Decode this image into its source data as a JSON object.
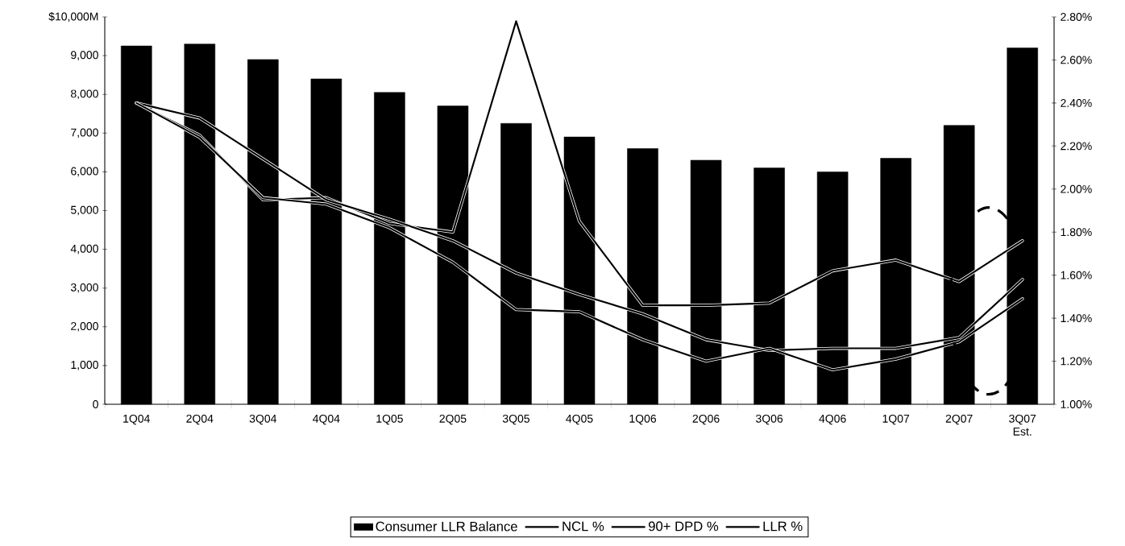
{
  "chart_data": {
    "type": "bar",
    "categories": [
      "1Q04",
      "2Q04",
      "3Q04",
      "4Q04",
      "1Q05",
      "2Q05",
      "3Q05",
      "4Q05",
      "1Q06",
      "2Q06",
      "3Q06",
      "4Q06",
      "1Q07",
      "2Q07",
      "3Q07 Est."
    ],
    "series": [
      {
        "name": "Consumer LLR Balance",
        "color": "#000000",
        "values": [
          9250,
          9300,
          8900,
          8400,
          8050,
          7700,
          7250,
          6900,
          6600,
          6300,
          6100,
          6000,
          6350,
          7200,
          9200
        ]
      },
      {
        "name": "NCL %",
        "type": "line",
        "axis": "y2",
        "color": "#000000",
        "values": [
          2.4,
          2.25,
          1.95,
          1.96,
          1.84,
          1.8,
          2.78,
          1.85,
          1.46,
          1.46,
          1.47,
          1.62,
          1.67,
          1.57,
          1.76
        ]
      },
      {
        "name": "90+ DPD %",
        "type": "line",
        "axis": "y2",
        "color": "#000000",
        "values": [
          2.4,
          2.33,
          2.14,
          1.95,
          1.86,
          1.76,
          1.61,
          1.51,
          1.42,
          1.3,
          1.25,
          1.26,
          1.26,
          1.31,
          1.58
        ]
      },
      {
        "name": "LLR %",
        "type": "line",
        "axis": "y2",
        "color": "#000000",
        "values": [
          2.4,
          2.24,
          1.96,
          1.93,
          1.82,
          1.66,
          1.44,
          1.43,
          1.3,
          1.2,
          1.26,
          1.16,
          1.21,
          1.29,
          1.49
        ]
      }
    ],
    "ylim": [
      0,
      10000
    ],
    "yticks": [
      {
        "value": 0,
        "label": "0"
      },
      {
        "value": 1000,
        "label": "1,000"
      },
      {
        "value": 2000,
        "label": "2,000"
      },
      {
        "value": 3000,
        "label": "3,000"
      },
      {
        "value": 4000,
        "label": "4,000"
      },
      {
        "value": 5000,
        "label": "5,000"
      },
      {
        "value": 6000,
        "label": "6,000"
      },
      {
        "value": 7000,
        "label": "7,000"
      },
      {
        "value": 8000,
        "label": "8,000"
      },
      {
        "value": 9000,
        "label": "9,000"
      },
      {
        "value": 10000,
        "label": "$10,000M"
      }
    ],
    "y2lim": [
      1.0,
      2.8
    ],
    "y2ticks": [
      {
        "value": 1.0,
        "label": "1.00%"
      },
      {
        "value": 1.2,
        "label": "1.20%"
      },
      {
        "value": 1.4,
        "label": "1.40%"
      },
      {
        "value": 1.6,
        "label": "1.60%"
      },
      {
        "value": 1.8,
        "label": "1.80%"
      },
      {
        "value": 2.0,
        "label": "2.00%"
      },
      {
        "value": 2.2,
        "label": "2.20%"
      },
      {
        "value": 2.4,
        "label": "2.40%"
      },
      {
        "value": 2.6,
        "label": "2.60%"
      },
      {
        "value": 2.8,
        "label": "2.80%"
      }
    ],
    "legend": "bottom",
    "marker": "none"
  }
}
